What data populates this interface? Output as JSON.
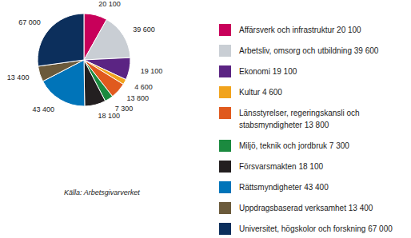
{
  "chart_data": {
    "type": "pie",
    "categories": [
      "Affärsverk och infrastruktur",
      "Arbetsliv, omsorg och utbildning",
      "Ekonomi",
      "Kultur",
      "Länsstyrelser, regeringskansli och stabsmyndigheter",
      "Miljö, teknik och jordbruk",
      "Försvarsmakten",
      "Rättsmyndigheter",
      "Uppdragsbaserad verksamhet",
      "Universitet, högskolor och forskning"
    ],
    "values": [
      20100,
      39600,
      19100,
      4600,
      13800,
      7300,
      18100,
      43400,
      13400,
      67000
    ],
    "value_labels": [
      "20 100",
      "39 600",
      "19 100",
      "4 600",
      "13 800",
      "7 300",
      "18 100",
      "43 400",
      "13 400",
      "67 000"
    ],
    "colors": [
      "#c8005a",
      "#c9ced4",
      "#5b2483",
      "#f1a31d",
      "#e05a1e",
      "#1b8a3f",
      "#231f20",
      "#0074b9",
      "#6b5a3b",
      "#0c2f5c"
    ],
    "data_labels": true,
    "annotations": [
      "Källa: Arbetsgivarverket"
    ]
  }
}
